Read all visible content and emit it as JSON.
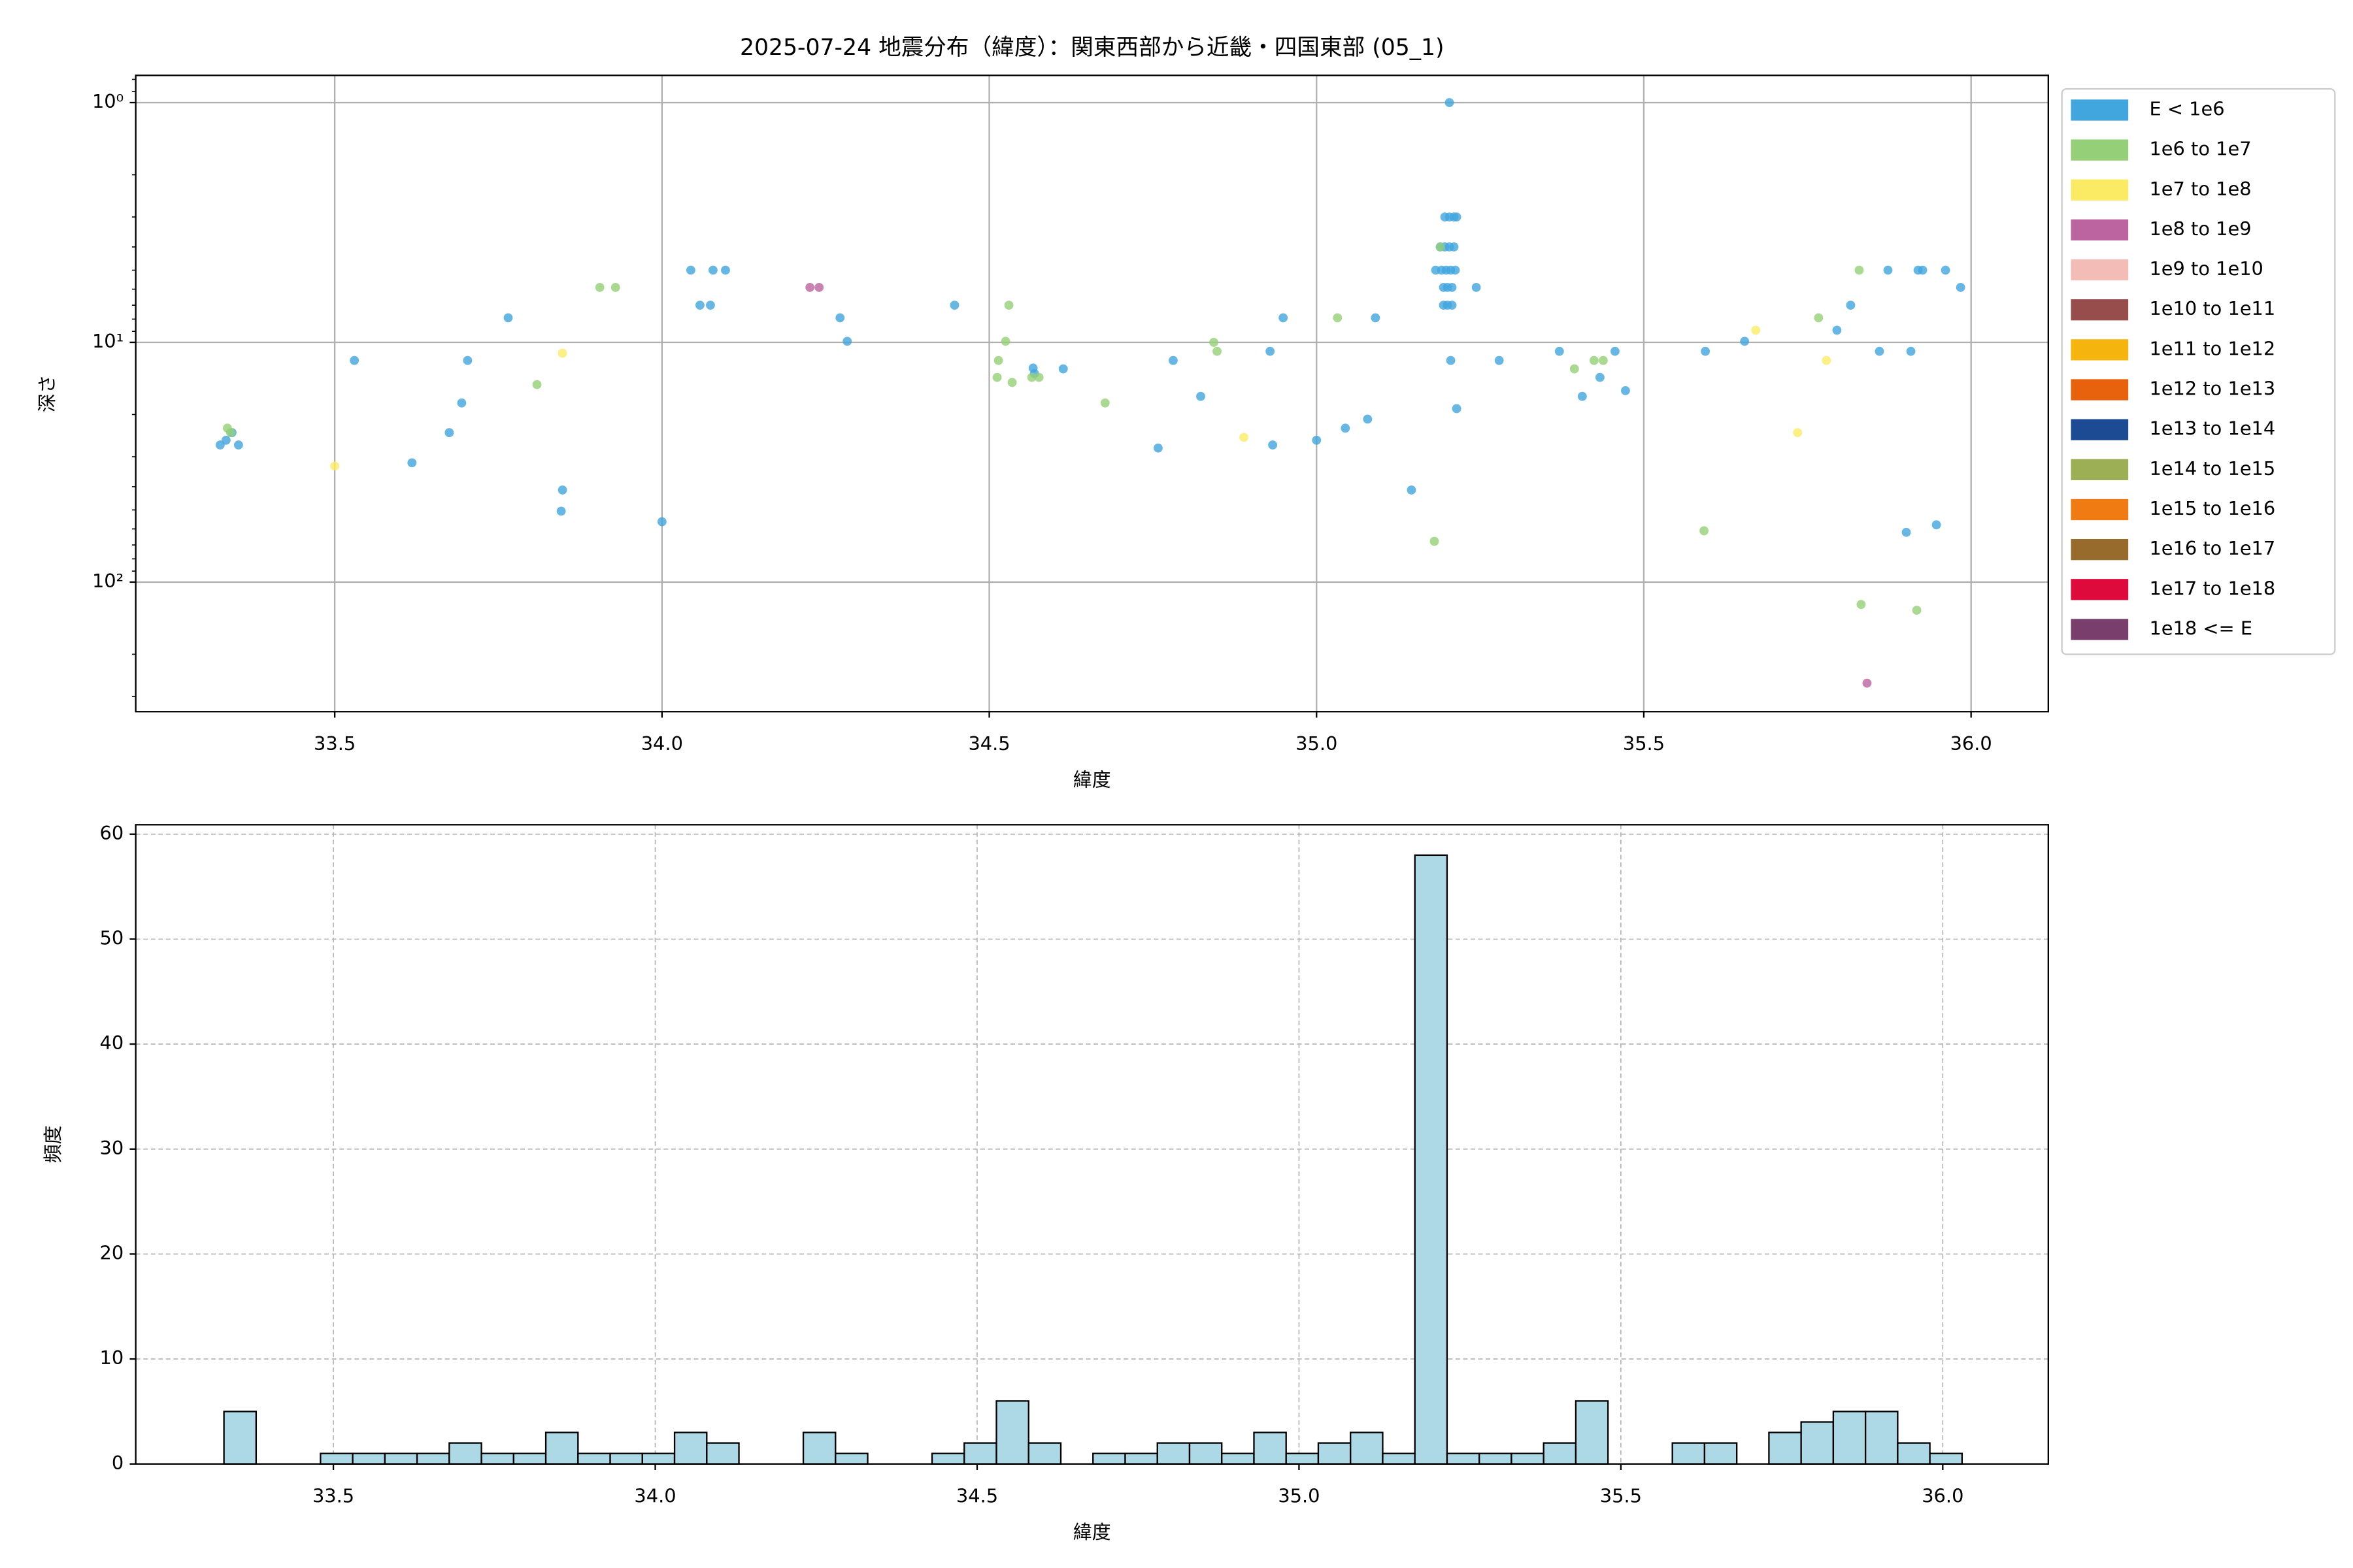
{
  "chart_data": [
    {
      "type": "scatter",
      "title": "2025-07-24 地震分布（緯度）：関東西部から近畿・四国東部 (05_1)",
      "xlabel": "緯度",
      "ylabel": "深さ",
      "xlim": [
        33.196,
        36.118
      ],
      "ylim": [
        0.77,
        347
      ],
      "log_y": true,
      "y_inverted": true,
      "grid": true,
      "legend": "outside right",
      "xticks": [
        33.5,
        {
          "value": 34,
          "label": "34.0"
        },
        34.5,
        {
          "value": 35,
          "label": "35.0"
        },
        35.5,
        {
          "value": 36,
          "label": "36.0"
        }
      ],
      "yticks": [
        {
          "value": 1,
          "label": "10⁰"
        },
        {
          "value": 10,
          "label": "10¹"
        },
        {
          "value": 100,
          "label": "10²"
        }
      ],
      "yminorticks": [
        0.8,
        0.9,
        2,
        3,
        4,
        5,
        6,
        7,
        8,
        9,
        20,
        30,
        40,
        50,
        60,
        70,
        80,
        90,
        200,
        300
      ],
      "series": [
        {
          "name": "E < 1e6",
          "color": "#41a5de",
          "x": [
            33.325,
            33.334,
            33.353,
            33.343,
            33.53,
            33.618,
            33.675,
            33.694,
            33.703,
            33.765,
            33.848,
            33.846,
            34.0,
            34.044,
            34.058,
            34.074,
            34.078,
            34.097,
            34.272,
            34.283,
            34.447,
            34.567,
            34.569,
            34.613,
            34.781,
            34.823,
            34.758,
            34.929,
            34.933,
            34.949,
            35.0,
            35.044,
            35.078,
            35.09,
            35.145,
            35.203,
            35.196,
            35.203,
            35.21,
            35.214,
            35.189,
            35.196,
            35.203,
            35.21,
            35.182,
            35.191,
            35.198,
            35.205,
            35.212,
            35.194,
            35.2,
            35.207,
            35.194,
            35.2,
            35.207,
            35.205,
            35.214,
            35.244,
            35.279,
            35.371,
            35.406,
            35.433,
            35.456,
            35.472,
            35.594,
            35.654,
            35.795,
            35.816,
            35.86,
            35.873,
            35.908,
            35.901,
            35.919,
            35.926,
            35.947,
            35.961,
            35.984
          ],
          "values": [
            26.8,
            25.6,
            26.8,
            23.8,
            11.9,
            31.8,
            23.8,
            17.9,
            11.9,
            7.9,
            41.3,
            50.6,
            56.0,
            5.0,
            7.0,
            7.0,
            5.0,
            5.0,
            7.9,
            9.9,
            7.0,
            12.8,
            13.5,
            12.9,
            11.9,
            16.8,
            27.6,
            10.9,
            26.8,
            7.9,
            25.6,
            22.8,
            20.9,
            7.9,
            41.3,
            1.0,
            3.0,
            3.0,
            3.0,
            3.0,
            4.0,
            4.0,
            4.0,
            4.0,
            5.0,
            5.0,
            5.0,
            5.0,
            5.0,
            5.9,
            5.9,
            5.9,
            7.0,
            7.0,
            7.0,
            11.9,
            18.9,
            5.9,
            11.9,
            10.9,
            16.8,
            14.0,
            10.9,
            15.9,
            10.9,
            9.9,
            8.9,
            7.0,
            10.9,
            5.0,
            10.9,
            62.0,
            5.0,
            5.0,
            57.7,
            5.0,
            5.9
          ]
        },
        {
          "name": "1e6 to 1e7",
          "color": "#95cf77",
          "x": [
            33.336,
            33.341,
            33.809,
            33.905,
            33.929,
            34.514,
            34.53,
            34.525,
            34.512,
            34.535,
            34.565,
            34.576,
            34.677,
            34.843,
            34.848,
            35.032,
            35.18,
            35.189,
            35.394,
            35.424,
            35.438,
            35.592,
            35.767,
            35.829,
            35.832,
            35.917
          ],
          "values": [
            22.8,
            23.8,
            15.0,
            5.9,
            5.9,
            11.9,
            7.0,
            9.9,
            14.0,
            14.7,
            14.0,
            14.0,
            17.9,
            10.0,
            10.9,
            7.9,
            67.6,
            4.0,
            12.9,
            11.9,
            11.9,
            61.1,
            7.9,
            5.0,
            124,
            131
          ]
        },
        {
          "name": "1e7 to 1e8",
          "color": "#fbeb64",
          "x": [
            33.5,
            33.848,
            34.889,
            35.671,
            35.735,
            35.779
          ],
          "values": [
            32.8,
            11.1,
            24.9,
            8.9,
            23.8,
            11.9
          ]
        },
        {
          "name": "1e8 to 1e9",
          "color": "#bb64a0",
          "x": [
            34.226,
            34.24,
            35.841
          ],
          "values": [
            5.9,
            5.9,
            264
          ]
        },
        {
          "name": "1e9 to 1e10",
          "color": "#f4bcb7",
          "x": [],
          "values": []
        },
        {
          "name": "1e10 to 1e11",
          "color": "#964d4b",
          "x": [],
          "values": []
        },
        {
          "name": "1e11 to 1e12",
          "color": "#f6b40e",
          "x": [],
          "values": []
        },
        {
          "name": "1e12 to 1e13",
          "color": "#e8620e",
          "x": [],
          "values": []
        },
        {
          "name": "1e13 to 1e14",
          "color": "#1d4b93",
          "x": [],
          "values": []
        },
        {
          "name": "1e14 to 1e15",
          "color": "#9caf55",
          "x": [],
          "values": []
        },
        {
          "name": "1e15 to 1e16",
          "color": "#f07b12",
          "x": [],
          "values": []
        },
        {
          "name": "1e16 to 1e17",
          "color": "#976b2c",
          "x": [],
          "values": []
        },
        {
          "name": "1e17 to 1e18",
          "color": "#dd0a3b",
          "x": [],
          "values": []
        },
        {
          "name": "1e18 <= E",
          "color": "#7a3e6d",
          "x": [],
          "values": []
        }
      ]
    },
    {
      "type": "histogram",
      "xlabel": "緯度",
      "ylabel": "頻度",
      "xlim": [
        33.193,
        36.164
      ],
      "ylim": [
        0,
        60.9
      ],
      "grid": "dashed",
      "color": "#add8e6",
      "edgecolor": "#000000",
      "xticks": [
        33.5,
        {
          "value": 34,
          "label": "34.0"
        },
        34.5,
        {
          "value": 35,
          "label": "35.0"
        },
        35.5,
        {
          "value": 36,
          "label": "36.0"
        }
      ],
      "yticks": [
        0,
        10,
        20,
        30,
        40,
        50,
        60
      ],
      "bins": [
        33.33,
        33.38,
        33.43,
        33.48,
        33.53,
        33.58,
        33.63,
        33.68,
        33.73,
        33.78,
        33.83,
        33.88,
        33.93,
        33.98,
        34.03,
        34.08,
        34.13,
        34.18,
        34.23,
        34.28,
        34.33,
        34.38,
        34.43,
        34.48,
        34.53,
        34.58,
        34.63,
        34.68,
        34.73,
        34.78,
        34.83,
        34.88,
        34.93,
        34.98,
        35.03,
        35.08,
        35.13,
        35.18,
        35.23,
        35.28,
        35.33,
        35.38,
        35.43,
        35.48,
        35.53,
        35.58,
        35.63,
        35.68,
        35.73,
        35.78,
        35.83,
        35.88,
        35.93,
        35.98,
        36.03
      ],
      "values": [
        5,
        0,
        0,
        1,
        1,
        1,
        1,
        2,
        1,
        1,
        3,
        1,
        1,
        1,
        3,
        2,
        0,
        0,
        3,
        1,
        0,
        0,
        1,
        2,
        6,
        2,
        0,
        1,
        1,
        2,
        2,
        1,
        3,
        1,
        2,
        3,
        1,
        58,
        1,
        1,
        1,
        2,
        6,
        0,
        0,
        2,
        2,
        0,
        3,
        4,
        5,
        5,
        2,
        1
      ]
    }
  ]
}
